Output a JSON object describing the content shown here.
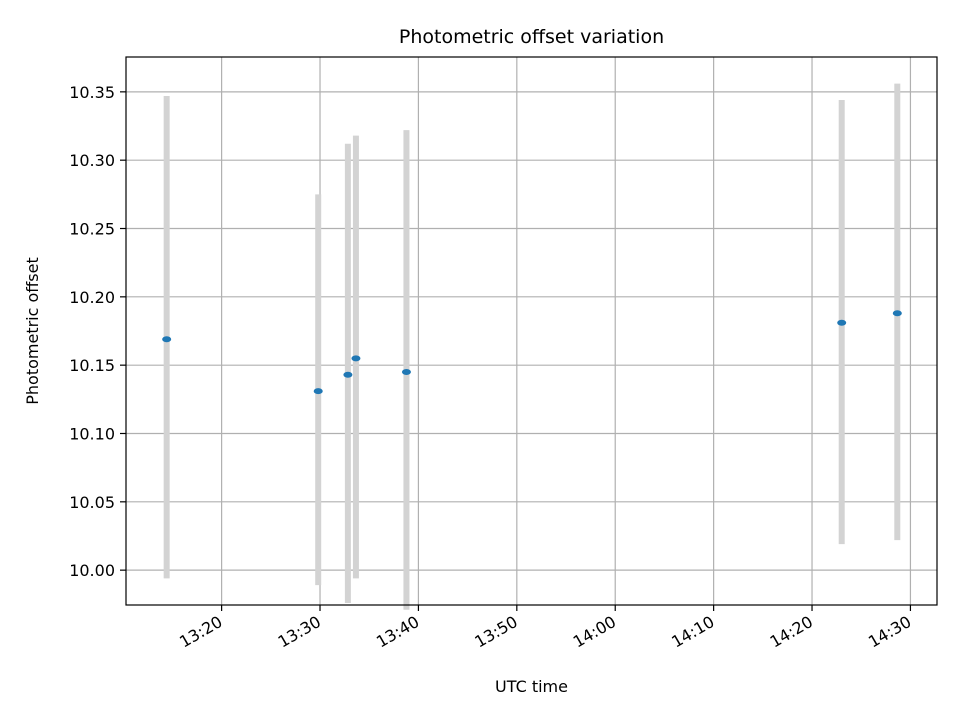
{
  "chart_data": {
    "type": "scatter",
    "title": "Photometric offset variation",
    "xlabel": "UTC time",
    "ylabel": "Photometric offset",
    "x_axis_kind": "time",
    "xlim": [
      "13:10:17",
      "14:32:42"
    ],
    "ylim": [
      9.9745,
      10.3755
    ],
    "x_ticks": [
      "13:20",
      "13:30",
      "13:40",
      "13:50",
      "14:00",
      "14:10",
      "14:20",
      "14:30"
    ],
    "y_ticks": [
      10.0,
      10.05,
      10.1,
      10.15,
      10.2,
      10.25,
      10.3,
      10.35
    ],
    "grid": true,
    "series": [
      {
        "marker_color": "#1f77b4",
        "errorbar_color": "#d3d3d3",
        "points": [
          {
            "x": "13:14:25",
            "y": 10.169,
            "yerr_low": 9.994,
            "yerr_high": 10.347
          },
          {
            "x": "13:29:49",
            "y": 10.131,
            "yerr_low": 9.989,
            "yerr_high": 10.275
          },
          {
            "x": "13:32:50",
            "y": 10.143,
            "yerr_low": 9.976,
            "yerr_high": 10.312
          },
          {
            "x": "13:33:39",
            "y": 10.155,
            "yerr_low": 9.994,
            "yerr_high": 10.318
          },
          {
            "x": "13:38:47",
            "y": 10.145,
            "yerr_low": 9.971,
            "yerr_high": 10.322
          },
          {
            "x": "14:23:01",
            "y": 10.181,
            "yerr_low": 10.019,
            "yerr_high": 10.344
          },
          {
            "x": "14:28:40",
            "y": 10.188,
            "yerr_low": 10.022,
            "yerr_high": 10.356
          }
        ]
      }
    ]
  }
}
